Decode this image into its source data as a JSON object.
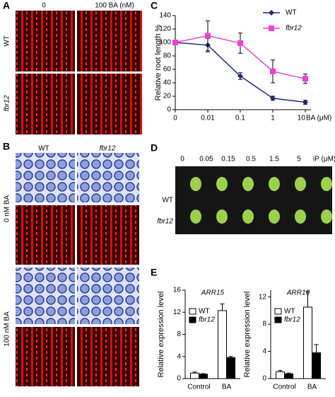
{
  "panels": {
    "a": {
      "label": "A",
      "columns": [
        "0",
        "100 BA (nM)"
      ],
      "rows": [
        "WT",
        "fbr12"
      ]
    },
    "b": {
      "label": "B",
      "columns": [
        "WT",
        "fbr12"
      ],
      "rows": [
        "0 nM BA",
        "100 nM BA"
      ]
    },
    "c": {
      "label": "C"
    },
    "d": {
      "label": "D",
      "columns": [
        "0",
        "0.05",
        "0.15",
        "0.5",
        "1.5",
        "5"
      ],
      "unit": "iP (μM)",
      "rows": [
        "WT",
        "fbr12"
      ]
    },
    "e": {
      "label": "E"
    }
  },
  "chart_data": [
    {
      "type": "line",
      "y_label": "Relative root length %",
      "x_label": "BA (μM)",
      "categories": [
        "0",
        "0.01",
        "0.1",
        "1",
        "10"
      ],
      "ylim": [
        0,
        140
      ],
      "yticks": [
        0,
        20,
        40,
        60,
        80,
        100,
        120,
        140
      ],
      "series": [
        {
          "name": "WT",
          "color": "#1f2a7a",
          "marker": "diamond",
          "values": [
            100,
            96,
            50,
            17,
            11
          ],
          "errors": [
            2,
            10,
            5,
            3,
            3
          ]
        },
        {
          "name": "fbr12",
          "color": "#ee3fd6",
          "marker": "square",
          "values": [
            100,
            110,
            99,
            57,
            46
          ],
          "errors": [
            3,
            22,
            15,
            17,
            7
          ]
        }
      ]
    },
    {
      "type": "bar",
      "title": "ARR15",
      "y_label": "Relative expression level",
      "categories": [
        "Control",
        "BA"
      ],
      "ylim": [
        0,
        16
      ],
      "yticks": [
        0,
        4,
        8,
        12,
        16
      ],
      "series": [
        {
          "name": "WT",
          "color": "#ffffff",
          "values": [
            1,
            12.3
          ],
          "errors": [
            0.2,
            1.2
          ]
        },
        {
          "name": "fbr12",
          "color": "#000000",
          "values": [
            0.8,
            3.8
          ],
          "errors": [
            0.1,
            0.2
          ]
        }
      ]
    },
    {
      "type": "bar",
      "title": "ARR16",
      "y_label": "Relative expression level",
      "categories": [
        "Control",
        "BA"
      ],
      "ylim": [
        0,
        13
      ],
      "yticks": [
        0,
        4,
        8,
        12
      ],
      "series": [
        {
          "name": "WT",
          "color": "#ffffff",
          "values": [
            1,
            10.5
          ],
          "errors": [
            0.2,
            2.3
          ]
        },
        {
          "name": "fbr12",
          "color": "#000000",
          "values": [
            0.7,
            3.8
          ],
          "errors": [
            0.1,
            1.2
          ]
        }
      ]
    }
  ]
}
